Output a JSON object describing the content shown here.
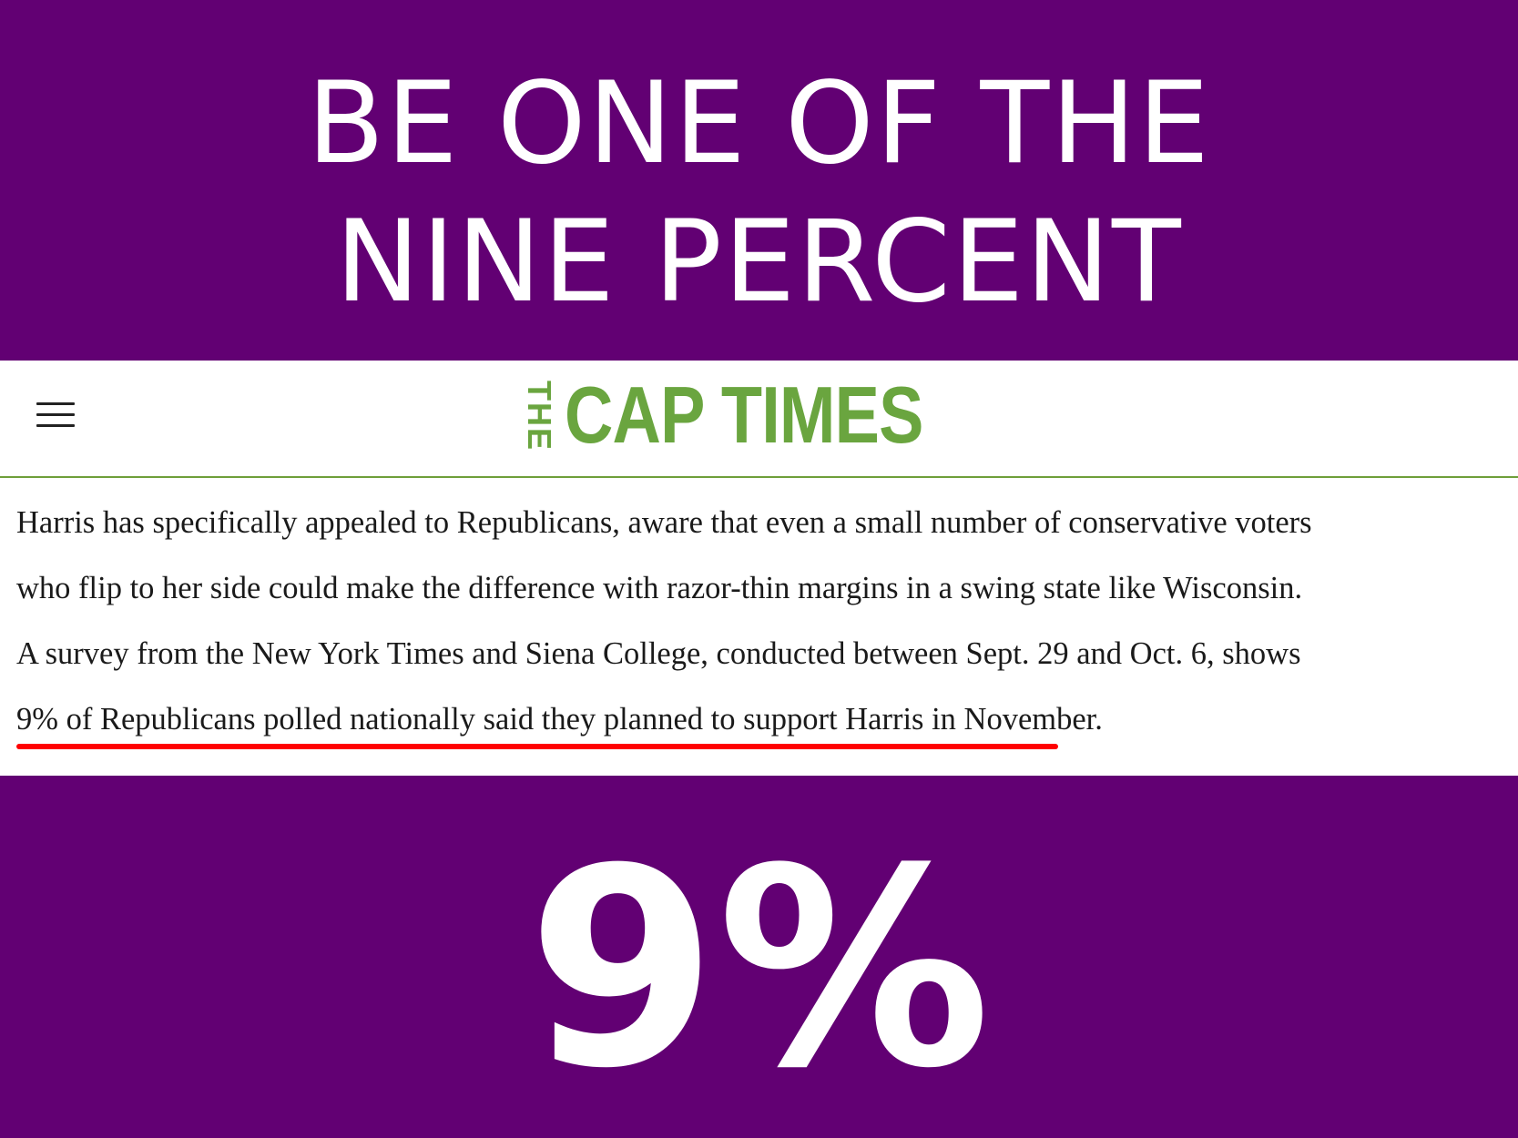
{
  "headline": {
    "line1": "BE ONE OF THE",
    "line2": "NINE PERCENT"
  },
  "site": {
    "menu_icon": "hamburger-menu-icon",
    "logo_the": "THE",
    "logo_name": "CAP TIMES"
  },
  "article": {
    "lines": [
      "Harris has specifically appealed to Republicans, aware that even a small number of conservative voters",
      "who flip to her side could make the difference with razor-thin margins in a swing state like Wisconsin.",
      "A survey from the New York Times and Siena College, conducted between Sept. 29 and Oct. 6, shows",
      "9% of Republicans polled nationally said they planned to support Harris in November."
    ]
  },
  "stat": "9%",
  "colors": {
    "background": "#620073",
    "logo_green": "#6aa53f",
    "underline_red": "#ff0000"
  }
}
